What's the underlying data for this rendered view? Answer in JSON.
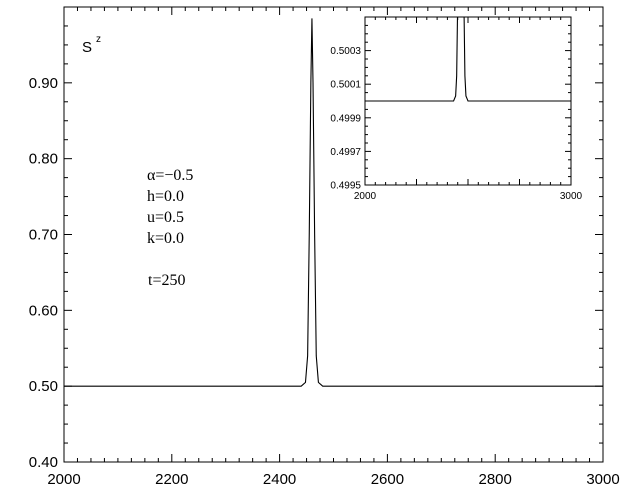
{
  "chart_data": [
    {
      "type": "line",
      "title": "",
      "ylabel": "S",
      "ylabel_superscript": "z",
      "xlabel": "",
      "xlim": [
        2000,
        3000
      ],
      "ylim": [
        0.4,
        1.0
      ],
      "x_ticks": [
        "2000",
        "2200",
        "2400",
        "2600",
        "2800",
        "3000"
      ],
      "y_ticks": [
        "0.40",
        "0.50",
        "0.60",
        "0.70",
        "0.80",
        "0.90"
      ],
      "grid": false,
      "annotations": [
        "α=−0.5",
        "h=0.0",
        "u=0.5",
        "k=0.0",
        "t=250"
      ],
      "series": [
        {
          "x": [
            2000,
            2440,
            2448,
            2452,
            2455,
            2458,
            2460,
            2462,
            2465,
            2468,
            2472,
            2480,
            3000
          ],
          "y": [
            0.5,
            0.5,
            0.505,
            0.54,
            0.7,
            0.9,
            0.985,
            0.9,
            0.7,
            0.54,
            0.505,
            0.5,
            0.5
          ]
        }
      ]
    },
    {
      "type": "line",
      "title": "",
      "xlim": [
        2000,
        3000
      ],
      "ylim": [
        0.4995,
        0.5005
      ],
      "x_ticks": [
        "2000",
        "3000"
      ],
      "y_ticks": [
        "0.4995",
        "0.4997",
        "0.4999",
        "0.5001",
        "0.5003"
      ],
      "grid": false,
      "series": [
        {
          "x": [
            2000,
            2430,
            2440,
            2445,
            2450,
            2480,
            2485,
            2490,
            2500,
            3000
          ],
          "y": [
            0.5,
            0.5,
            0.50003,
            0.50015,
            0.5006,
            0.5006,
            0.50015,
            0.50003,
            0.5,
            0.5
          ]
        }
      ]
    }
  ],
  "colors": {
    "line": "#000000",
    "background": "#ffffff"
  }
}
